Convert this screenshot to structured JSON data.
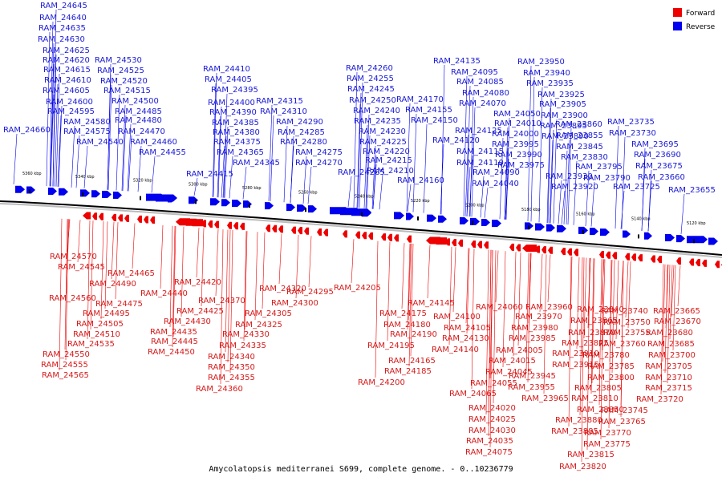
{
  "caption": "Amycolatopsis mediterranei S699, complete genome. - 0..10236779",
  "legend": [
    {
      "label": "Forward",
      "color": "#ee0000"
    },
    {
      "label": "Reverse",
      "color": "#0000ee"
    }
  ],
  "ticks": [
    "5360 kbp",
    "5340 kbp",
    "5320 kbp",
    "5300 kbp",
    "5280 kbp",
    "5260 kbp",
    "5240 kbp",
    "5220 kbp",
    "5200 kbp",
    "5180 kbp",
    "5160 kbp",
    "5140 kbp",
    "5120 kbp"
  ],
  "reverse_labels": [
    "RAM_24645",
    "RAM_24640",
    "RAM_24635",
    "RAM_24630",
    "RAM_24625",
    "RAM_24620",
    "RAM_24615",
    "RAM_24610",
    "RAM_24605",
    "RAM_24600",
    "RAM_24595",
    "RAM_24580",
    "RAM_24575",
    "RAM_24660",
    "RAM_24540",
    "RAM_24530",
    "RAM_24525",
    "RAM_24520",
    "RAM_24515",
    "RAM_24500",
    "RAM_24485",
    "RAM_24480",
    "RAM_24470",
    "RAM_24460",
    "RAM_24455",
    "RAM_24410",
    "RAM_24405",
    "RAM_24395",
    "RAM_24400",
    "RAM_24390",
    "RAM_24385",
    "RAM_24380",
    "RAM_24375",
    "RAM_24365",
    "RAM_24345",
    "RAM_24415",
    "RAM_24315",
    "RAM_24310",
    "RAM_24290",
    "RAM_24285",
    "RAM_24280",
    "RAM_24275",
    "RAM_24270",
    "RAM_24265",
    "RAM_24260",
    "RAM_24255",
    "RAM_24245",
    "RAM_24250",
    "RAM_24240",
    "RAM_24235",
    "RAM_24230",
    "RAM_24225",
    "RAM_24220",
    "RAM_24215",
    "RAM_24210",
    "RAM_24170",
    "RAM_24155",
    "RAM_24150",
    "RAM_24160",
    "RAM_24135",
    "RAM_24095",
    "RAM_24085",
    "RAM_24080",
    "RAM_24070",
    "RAM_24125",
    "RAM_24120",
    "RAM_24115",
    "RAM_24110",
    "RAM_24090",
    "RAM_24050",
    "RAM_24010",
    "RAM_24000",
    "RAM_23995",
    "RAM_23990",
    "RAM_23975",
    "RAM_24040",
    "RAM_23950",
    "RAM_23940",
    "RAM_23935",
    "RAM_23925",
    "RAM_23905",
    "RAM_23900",
    "RAM_23895",
    "RAM_23890",
    "RAM_23860",
    "RAM_23855",
    "RAM_23845",
    "RAM_23830",
    "RAM_23795",
    "RAM_23790",
    "RAM_23930",
    "RAM_23920",
    "RAM_23735",
    "RAM_23730",
    "RAM_23695",
    "RAM_23690",
    "RAM_23675",
    "RAM_23660",
    "RAM_23725",
    "RAM_23655"
  ],
  "forward_labels": [
    "RAM_24570",
    "RAM_24545",
    "RAM_24490",
    "RAM_24465",
    "RAM_24560",
    "RAM_24475",
    "RAM_24495",
    "RAM_24505",
    "RAM_24510",
    "RAM_24535",
    "RAM_24550",
    "RAM_24555",
    "RAM_24565",
    "RAM_24440",
    "RAM_24420",
    "RAM_24425",
    "RAM_24430",
    "RAM_24435",
    "RAM_24445",
    "RAM_24450",
    "RAM_24370",
    "RAM_24320",
    "RAM_24295",
    "RAM_24300",
    "RAM_24305",
    "RAM_24325",
    "RAM_24330",
    "RAM_24335",
    "RAM_24340",
    "RAM_24350",
    "RAM_24355",
    "RAM_24360",
    "RAM_24205",
    "RAM_24145",
    "RAM_24175",
    "RAM_24180",
    "RAM_24190",
    "RAM_24195",
    "RAM_24165",
    "RAM_24185",
    "RAM_24200",
    "RAM_24100",
    "RAM_24105",
    "RAM_24130",
    "RAM_24140",
    "RAM_24060",
    "RAM_23960",
    "RAM_23970",
    "RAM_23980",
    "RAM_23985",
    "RAM_24005",
    "RAM_24015",
    "RAM_24045",
    "RAM_24055",
    "RAM_24065",
    "RAM_24020",
    "RAM_24025",
    "RAM_24030",
    "RAM_24035",
    "RAM_24075",
    "RAM_23945",
    "RAM_23955",
    "RAM_23965",
    "RAM_23840",
    "RAM_23865",
    "RAM_23870",
    "RAM_23875",
    "RAM_23910",
    "RAM_23915",
    "RAM_23780",
    "RAM_23785",
    "RAM_23800",
    "RAM_23805",
    "RAM_23810",
    "RAM_23850",
    "RAM_23880",
    "RAM_23885",
    "RAM_23740",
    "RAM_23750",
    "RAM_23755",
    "RAM_23760",
    "RAM_23745",
    "RAM_23765",
    "RAM_23770",
    "RAM_23775",
    "RAM_23815",
    "RAM_23820",
    "RAM_23665",
    "RAM_23670",
    "RAM_23680",
    "RAM_23685",
    "RAM_23700",
    "RAM_23705",
    "RAM_23710",
    "RAM_23715",
    "RAM_23720"
  ]
}
